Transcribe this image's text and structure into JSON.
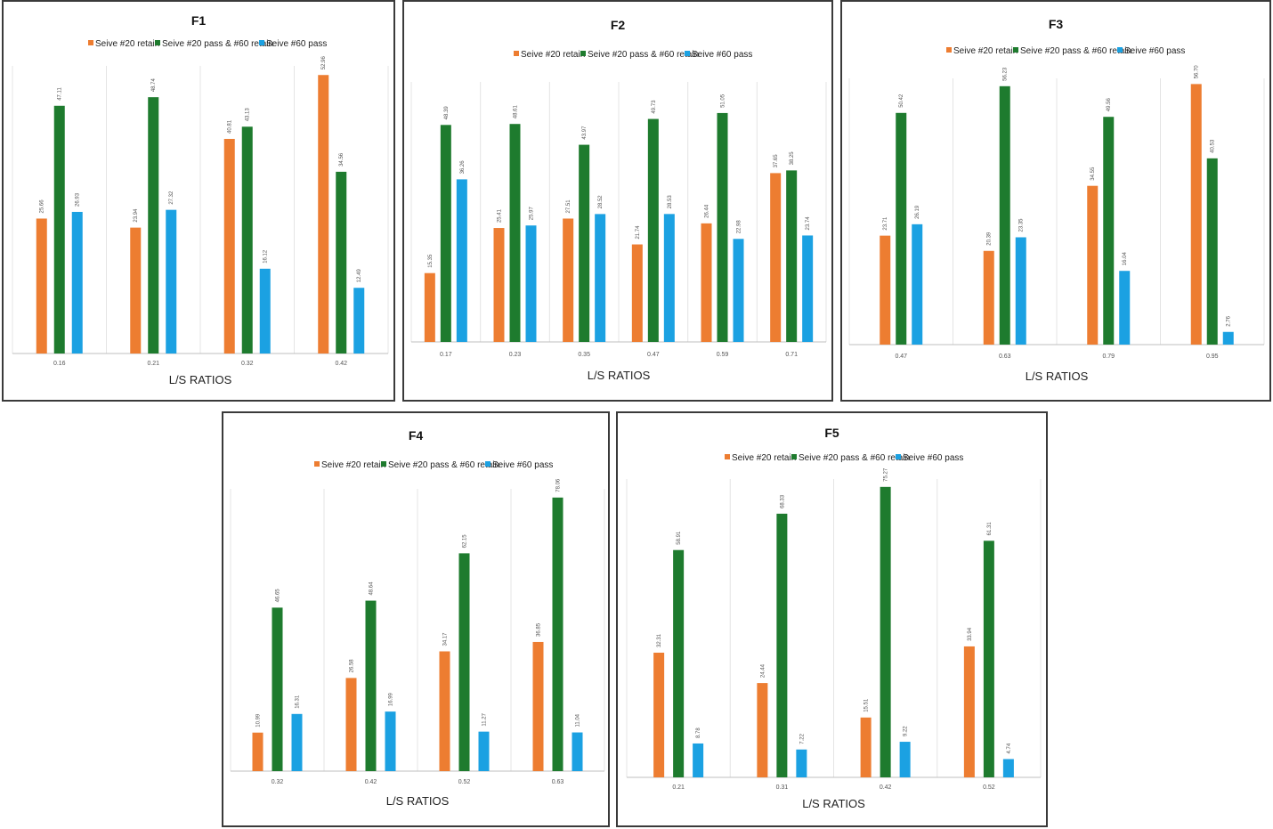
{
  "colors": {
    "retain20": "#ED7D31",
    "pass20retain60": "#1E7B2E",
    "pass60": "#1BA1E2",
    "grid": "#e4e4e4",
    "axis": "#bfbfbf"
  },
  "legend_labels": [
    "Seive #20 retain",
    "Seive #20 pass & #60 retain",
    "Seive #60 pass"
  ],
  "chart_data": [
    {
      "type": "bar",
      "title": "F1",
      "xlabel": "L/S RATIOS",
      "ylabel": "",
      "categories": [
        "0.16",
        "0.21",
        "0.32",
        "0.42"
      ],
      "series": [
        {
          "name": "Seive #20 retain",
          "values": [
            25.66,
            23.94,
            40.81,
            52.96
          ],
          "labels": [
            "25.66",
            "23.94",
            "40.81",
            "52.96"
          ]
        },
        {
          "name": "Seive #20 pass & #60 retain",
          "values": [
            47.11,
            48.74,
            43.13,
            34.56
          ],
          "labels": [
            "47.11",
            "48.74",
            "43.13",
            "34.56"
          ]
        },
        {
          "name": "Seive #60 pass",
          "values": [
            26.93,
            27.32,
            16.12,
            12.49
          ],
          "labels": [
            "26.93",
            "27.32",
            "16.12",
            "12.49"
          ]
        }
      ],
      "ylim": [
        0,
        53
      ]
    },
    {
      "type": "bar",
      "title": "F2",
      "xlabel": "L/S RATIOS",
      "ylabel": "",
      "categories": [
        "0.17",
        "0.23",
        "0.35",
        "0.47",
        "0.59",
        "0.71"
      ],
      "series": [
        {
          "name": "Seive #20 retain",
          "values": [
            15.35,
            25.41,
            27.51,
            21.74,
            26.44,
            37.65
          ],
          "labels": [
            "15.35",
            "25.41",
            "27.51",
            "21.74",
            "26.44",
            "37.65"
          ]
        },
        {
          "name": "Seive #20 pass & #60 retain",
          "values": [
            48.39,
            48.61,
            43.97,
            49.73,
            51.05,
            38.25
          ],
          "labels": [
            "48.39",
            "48.61",
            "43.97",
            "49.73",
            "51.05",
            "38.25"
          ]
        },
        {
          "name": "Seive #60 pass",
          "values": [
            36.26,
            25.97,
            28.52,
            28.53,
            22.98,
            23.74
          ],
          "labels": [
            "36.26",
            "25.97",
            "28.52",
            "28.53",
            "22.98",
            "23.74"
          ]
        }
      ],
      "ylim": [
        0,
        56
      ]
    },
    {
      "type": "bar",
      "title": "F3",
      "xlabel": "L/S RATIOS",
      "ylabel": "",
      "categories": [
        "0.47",
        "0.63",
        "0.79",
        "0.95"
      ],
      "series": [
        {
          "name": "Seive #20 retain",
          "values": [
            23.71,
            20.39,
            34.55,
            56.7
          ],
          "labels": [
            "23.71",
            "20.39",
            "34.55",
            "56.70"
          ]
        },
        {
          "name": "Seive #20 pass & #60 retain",
          "values": [
            50.42,
            56.23,
            49.56,
            40.53
          ],
          "labels": [
            "50.42",
            "56.23",
            "49.56",
            "40.53"
          ]
        },
        {
          "name": "Seive #60 pass",
          "values": [
            26.19,
            23.35,
            16.04,
            2.76
          ],
          "labels": [
            "26.19",
            "23.35",
            "16.04",
            "2.76"
          ]
        }
      ],
      "ylim": [
        0,
        56
      ]
    },
    {
      "type": "bar",
      "title": "F4",
      "xlabel": "L/S RATIOS",
      "ylabel": "",
      "categories": [
        "0.32",
        "0.42",
        "0.52",
        "0.63"
      ],
      "series": [
        {
          "name": "Seive #20 retain",
          "values": [
            10.99,
            26.58,
            34.17,
            36.85
          ],
          "labels": [
            "10.99",
            "26.58",
            "34.17",
            "36.85"
          ]
        },
        {
          "name": "Seive #20 pass & #60 retain",
          "values": [
            46.65,
            48.64,
            62.15,
            78.06
          ],
          "labels": [
            "46.65",
            "48.64",
            "62.15",
            "78.06"
          ]
        },
        {
          "name": "Seive #60 pass",
          "values": [
            16.31,
            16.99,
            11.27,
            11.04
          ],
          "labels": [
            "16.31",
            "16.99",
            "11.27",
            "11.04"
          ]
        }
      ],
      "ylim": [
        0,
        78
      ]
    },
    {
      "type": "bar",
      "title": "F5",
      "xlabel": "L/S RATIOS",
      "ylabel": "",
      "categories": [
        "0.21",
        "0.31",
        "0.42",
        "0.52"
      ],
      "series": [
        {
          "name": "Seive #20 retain",
          "values": [
            32.31,
            24.44,
            15.51,
            33.94
          ],
          "labels": [
            "32.31",
            "24.44",
            "15.51",
            "33.94"
          ]
        },
        {
          "name": "Seive #20 pass & #60 retain",
          "values": [
            58.91,
            68.33,
            75.27,
            61.31
          ],
          "labels": [
            "58.91",
            "68.33",
            "75.27",
            "61.31"
          ]
        },
        {
          "name": "Seive #60 pass",
          "values": [
            8.78,
            7.22,
            9.22,
            4.74
          ],
          "labels": [
            "8.78",
            "7.22",
            "9.22",
            "4.74"
          ]
        }
      ],
      "ylim": [
        0,
        75
      ]
    }
  ]
}
